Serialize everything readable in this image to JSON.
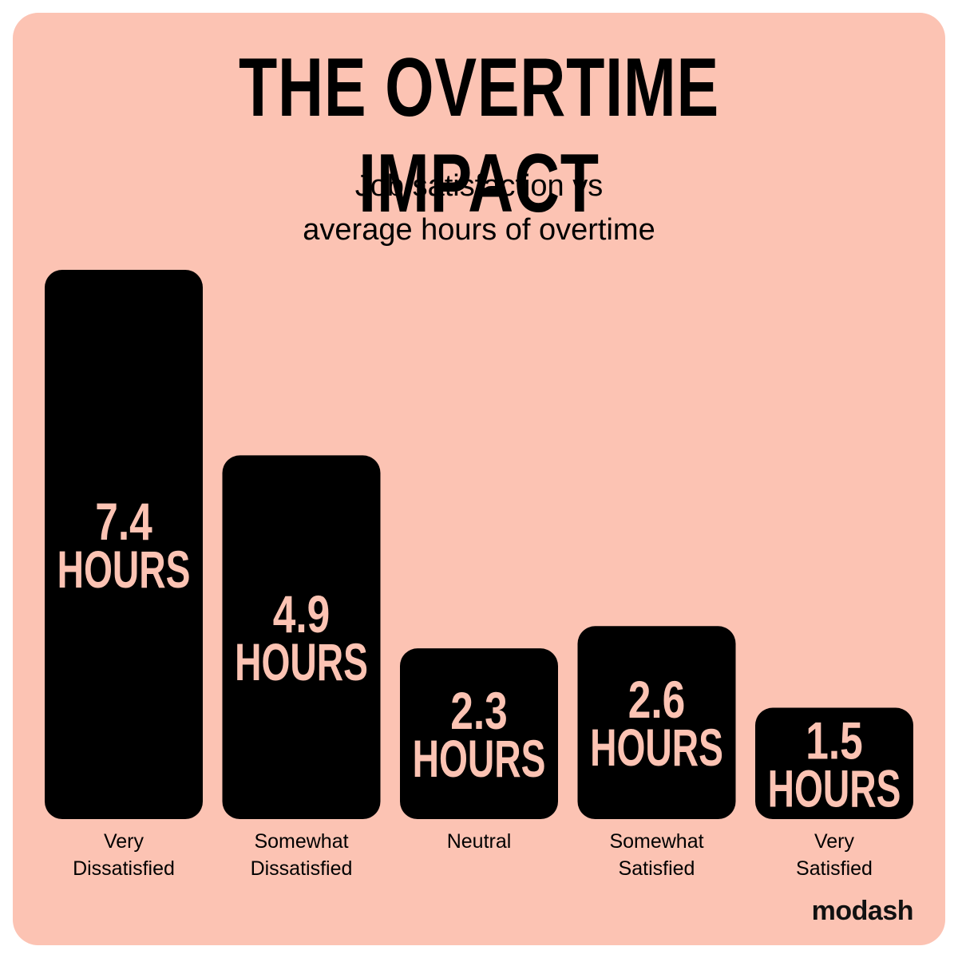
{
  "title": "THE OVERTIME IMPACT",
  "subtitle": {
    "line1": "Job satisfaction vs",
    "line2": "average hours of overtime"
  },
  "brand": "modash",
  "colors": {
    "background": "#fcc3b3",
    "bar": "#000000",
    "bar_label": "#fcc3b3",
    "text": "#000000"
  },
  "chart_data": {
    "type": "bar",
    "title": "THE OVERTIME IMPACT",
    "subtitle": "Job satisfaction vs average hours of overtime",
    "categories": [
      [
        "Very",
        "Dissatisfied"
      ],
      [
        "Somewhat",
        "Dissatisfied"
      ],
      [
        "Neutral"
      ],
      [
        "Somewhat",
        "Satisfied"
      ],
      [
        "Very",
        "Satisfied"
      ]
    ],
    "values": [
      7.4,
      4.9,
      2.3,
      2.6,
      1.5
    ],
    "value_labels": [
      "7.4",
      "4.9",
      "2.3",
      "2.6",
      "1.5"
    ],
    "unit_label": "HOURS",
    "ylim": [
      0,
      7.4
    ],
    "grid": false,
    "legend": "none"
  }
}
